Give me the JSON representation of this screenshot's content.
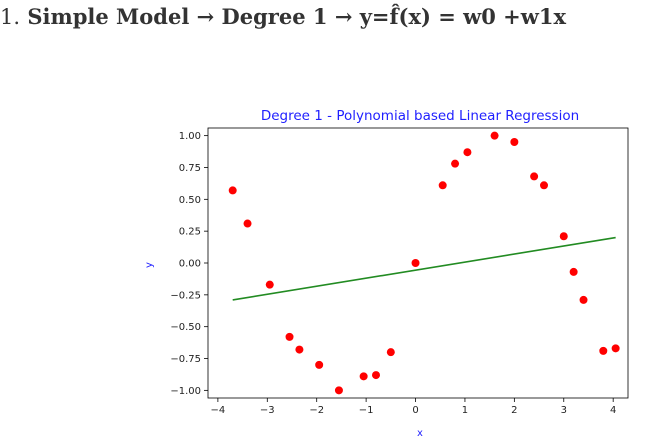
{
  "heading": {
    "number": "1.",
    "text": "Simple Model → Degree 1 → y=f̂(x) = w0 +w1x"
  },
  "colors": {
    "title": "#1f1fff",
    "axis_label": "#1f1fff",
    "points": "#ff0000",
    "line": "#228b22"
  },
  "chart_data": {
    "type": "scatter",
    "title": "Degree 1 - Polynomial based Linear Regression",
    "xlabel": "x",
    "ylabel": "y",
    "xlim": [
      -4.2,
      4.3
    ],
    "ylim": [
      -1.06,
      1.06
    ],
    "xticks": [
      -4,
      -3,
      -2,
      -1,
      0,
      1,
      2,
      3,
      4
    ],
    "xtick_labels": [
      "−4",
      "−3",
      "−2",
      "−1",
      "0",
      "1",
      "2",
      "3",
      "4"
    ],
    "yticks": [
      1.0,
      0.75,
      0.5,
      0.25,
      0.0,
      -0.25,
      -0.5,
      -0.75,
      -1.0
    ],
    "ytick_labels": [
      "1.00",
      "0.75",
      "0.50",
      "0.25",
      "0.00",
      "−0.25",
      "−0.50",
      "−0.75",
      "−1.00"
    ],
    "grid": false,
    "series": [
      {
        "type": "scatter",
        "x": [
          -3.7,
          -3.4,
          -2.95,
          -2.55,
          -2.35,
          -1.95,
          -1.55,
          -1.05,
          -0.8,
          -0.5,
          0.0,
          0.55,
          0.8,
          1.05,
          1.6,
          2.0,
          2.4,
          2.6,
          3.0,
          3.2,
          3.4,
          3.8,
          4.05
        ],
        "y": [
          0.57,
          0.31,
          -0.17,
          -0.58,
          -0.68,
          -0.8,
          -1.0,
          -0.89,
          -0.88,
          -0.7,
          0.0,
          0.61,
          0.78,
          0.87,
          1.0,
          0.95,
          0.68,
          0.61,
          0.21,
          -0.07,
          -0.29,
          -0.69,
          -0.67
        ]
      },
      {
        "type": "line",
        "x": [
          -3.7,
          4.05
        ],
        "y": [
          -0.29,
          0.2
        ]
      }
    ]
  }
}
